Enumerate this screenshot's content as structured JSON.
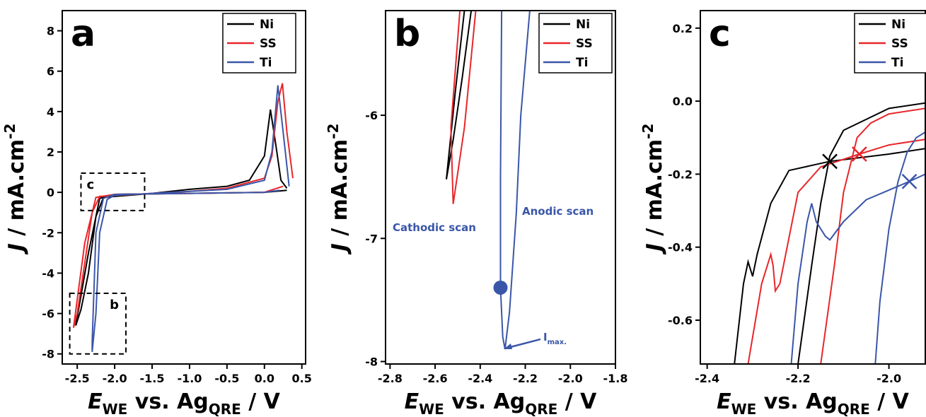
{
  "chart_data": [
    {
      "type": "line",
      "panel_label": "a",
      "x_label": {
        "symbol": "E",
        "symbol_sub": "WE",
        "text": " vs. Ag",
        "text_sub": "QRE",
        "unit": " / V"
      },
      "y_label": {
        "symbol": "J",
        "text": " / mA.cm",
        "sup": "-2"
      },
      "xlim": [
        -2.7,
        0.55
      ],
      "ylim": [
        -8.5,
        9
      ],
      "xticks": [
        -2.5,
        {
          "value": -2.0,
          "label": "-2.0"
        },
        -1.5,
        {
          "value": -1.0,
          "label": "-1.0"
        },
        -0.5,
        {
          "value": 0,
          "label": "0.0"
        },
        0.5
      ],
      "yticks": [
        -8,
        -6,
        -4,
        -2,
        0,
        2,
        4,
        6,
        8
      ],
      "legend": "upper right",
      "series": [
        {
          "name": "Ni",
          "color": "#000000",
          "x": [
            0.3,
            0.0,
            -1.0,
            -2.0,
            -2.2,
            -2.35,
            -2.52,
            -2.45,
            -2.35,
            -2.25,
            -2.15,
            -1.5,
            -1.0,
            -0.5,
            -0.2,
            0.0,
            0.08,
            0.15,
            0.22,
            0.3
          ],
          "values": [
            0.1,
            0.0,
            -0.05,
            -0.1,
            -0.3,
            -3.0,
            -6.6,
            -5.8,
            -4.0,
            -1.2,
            -0.25,
            -0.05,
            0.15,
            0.3,
            0.6,
            1.8,
            4.1,
            2.4,
            0.6,
            0.2
          ]
        },
        {
          "name": "SS",
          "color": "#e8262a",
          "x": [
            0.25,
            0.0,
            -1.0,
            -2.0,
            -2.25,
            -2.4,
            -2.55,
            -2.5,
            -2.4,
            -2.3,
            -2.2,
            -1.5,
            -1.0,
            -0.5,
            0.0,
            0.1,
            0.18,
            0.24,
            0.3,
            0.38
          ],
          "values": [
            0.3,
            0.0,
            -0.05,
            -0.1,
            -0.25,
            -2.5,
            -6.7,
            -6.0,
            -3.5,
            -1.0,
            -0.2,
            -0.05,
            0.05,
            0.2,
            0.7,
            1.8,
            4.5,
            5.4,
            3.0,
            0.7
          ]
        },
        {
          "name": "Ti",
          "color": "#3a56a8",
          "x": [
            0.2,
            0.0,
            -1.0,
            -2.0,
            -2.15,
            -2.25,
            -2.3,
            -2.3,
            -2.25,
            -2.2,
            -2.1,
            -2.0,
            -1.5,
            -1.0,
            -0.5,
            0.0,
            0.1,
            0.18,
            0.25,
            0.33
          ],
          "values": [
            0.1,
            0.0,
            -0.05,
            -0.1,
            -0.3,
            -2.0,
            -7.4,
            -7.9,
            -6.0,
            -2.0,
            -0.35,
            -0.15,
            -0.05,
            0.05,
            0.15,
            0.6,
            2.0,
            5.3,
            3.0,
            0.3
          ]
        }
      ],
      "insets": [
        {
          "label": "c",
          "xlim": [
            -2.45,
            -1.6
          ],
          "ylim": [
            -0.9,
            0.95
          ]
        },
        {
          "label": "b",
          "xlim": [
            -2.6,
            -1.85
          ],
          "ylim": [
            -8.0,
            -5.0
          ]
        }
      ]
    },
    {
      "type": "line",
      "panel_label": "b",
      "x_label": {
        "symbol": "E",
        "symbol_sub": "WE",
        "text": " vs. Ag",
        "text_sub": "QRE",
        "unit": " / V"
      },
      "y_label": {
        "symbol": "J",
        "text": " / mA.cm",
        "sup": "-2"
      },
      "xlim": [
        -2.82,
        -1.8
      ],
      "ylim": [
        -8.02,
        -5.15
      ],
      "xticks": [
        -2.8,
        -2.6,
        -2.4,
        -2.2,
        {
          "value": -2.0,
          "label": "-2.0"
        },
        -1.8
      ],
      "yticks": [
        -8,
        -7,
        -6
      ],
      "legend": "upper right",
      "series": [
        {
          "name": "Ni",
          "color": "#000000",
          "x": [
            -2.47,
            -2.51,
            -2.55,
            -2.52,
            -2.48,
            -2.44
          ],
          "values": [
            -5.15,
            -5.8,
            -6.52,
            -6.2,
            -5.7,
            -5.15
          ]
        },
        {
          "name": "SS",
          "color": "#e8262a",
          "x": [
            -2.49,
            -2.53,
            -2.52,
            -2.47,
            -2.42
          ],
          "values": [
            -5.15,
            -6.1,
            -6.72,
            -6.1,
            -5.15
          ]
        },
        {
          "name": "Ti",
          "color": "#3a56a8",
          "x": [
            -2.305,
            -2.31,
            -2.31,
            -2.3,
            -2.29,
            -2.27,
            -2.24,
            -2.22,
            -2.18
          ],
          "values": [
            -5.15,
            -6.5,
            -7.4,
            -7.8,
            -7.9,
            -7.6,
            -6.8,
            -6.0,
            -5.15
          ]
        }
      ],
      "markers": [
        {
          "x": -2.31,
          "y": -7.4,
          "color": "#3a56a8"
        }
      ],
      "annotations": [
        "Cathodic scan",
        "Anodic scan"
      ],
      "imax": {
        "symbol": "I",
        "sub": "max."
      }
    },
    {
      "type": "line",
      "panel_label": "c",
      "x_label": {
        "symbol": "E",
        "symbol_sub": "WE",
        "text": " vs. Ag",
        "text_sub": "QRE",
        "unit": " / V"
      },
      "y_label": {
        "symbol": "J",
        "text": " / mA.cm",
        "sup": "-2"
      },
      "xlim": [
        -2.415,
        -1.92
      ],
      "ylim": [
        -0.72,
        0.248
      ],
      "xticks": [
        -2.4,
        -2.2,
        {
          "value": -2.0,
          "label": "-2.0"
        }
      ],
      "yticks": [
        -0.6,
        -0.4,
        -0.2,
        {
          "value": 0,
          "label": "0.0"
        },
        0.2
      ],
      "legend": "upper right",
      "series": [
        {
          "name": "Ni",
          "color": "#000000",
          "x": [
            -2.34,
            -2.32,
            -2.31,
            -2.3,
            -2.29,
            -2.26,
            -2.22,
            -2.13,
            -2.0,
            -1.92,
            null,
            -2.2,
            -2.17,
            -2.15,
            -2.13,
            -2.1,
            -2.05,
            -2.0,
            -1.92
          ],
          "values": [
            -0.72,
            -0.5,
            -0.44,
            -0.48,
            -0.42,
            -0.28,
            -0.19,
            -0.165,
            -0.145,
            -0.13,
            null,
            -0.72,
            -0.45,
            -0.28,
            -0.15,
            -0.08,
            -0.05,
            -0.02,
            -0.005
          ]
        },
        {
          "name": "SS",
          "color": "#e8262a",
          "x": [
            -2.31,
            -2.28,
            -2.26,
            -2.255,
            -2.25,
            -2.24,
            -2.2,
            -2.15,
            -2.065,
            -2.0,
            -1.92,
            null,
            -2.15,
            -2.12,
            -2.1,
            -2.07,
            -2.04,
            -2.0,
            -1.92
          ],
          "values": [
            -0.72,
            -0.5,
            -0.42,
            -0.45,
            -0.52,
            -0.5,
            -0.25,
            -0.18,
            -0.145,
            -0.12,
            -0.105,
            null,
            -0.72,
            -0.45,
            -0.25,
            -0.1,
            -0.06,
            -0.035,
            -0.02
          ]
        },
        {
          "name": "Ti",
          "color": "#3a56a8",
          "x": [
            -2.215,
            -2.2,
            -2.18,
            -2.17,
            -2.16,
            -2.14,
            -2.13,
            -2.1,
            -2.05,
            -1.955,
            -1.92,
            null,
            -2.03,
            -2.02,
            -2.0,
            -1.98,
            -1.96,
            -1.94,
            -1.92
          ],
          "values": [
            -0.72,
            -0.5,
            -0.33,
            -0.28,
            -0.33,
            -0.37,
            -0.38,
            -0.33,
            -0.27,
            -0.22,
            -0.2,
            null,
            -0.72,
            -0.55,
            -0.35,
            -0.22,
            -0.14,
            -0.1,
            -0.085
          ]
        }
      ],
      "markers": [
        {
          "x": -2.13,
          "y": -0.165,
          "color": "#000000"
        },
        {
          "x": -2.065,
          "y": -0.145,
          "color": "#e8262a"
        },
        {
          "x": -1.955,
          "y": -0.22,
          "color": "#3a56a8"
        }
      ]
    }
  ]
}
